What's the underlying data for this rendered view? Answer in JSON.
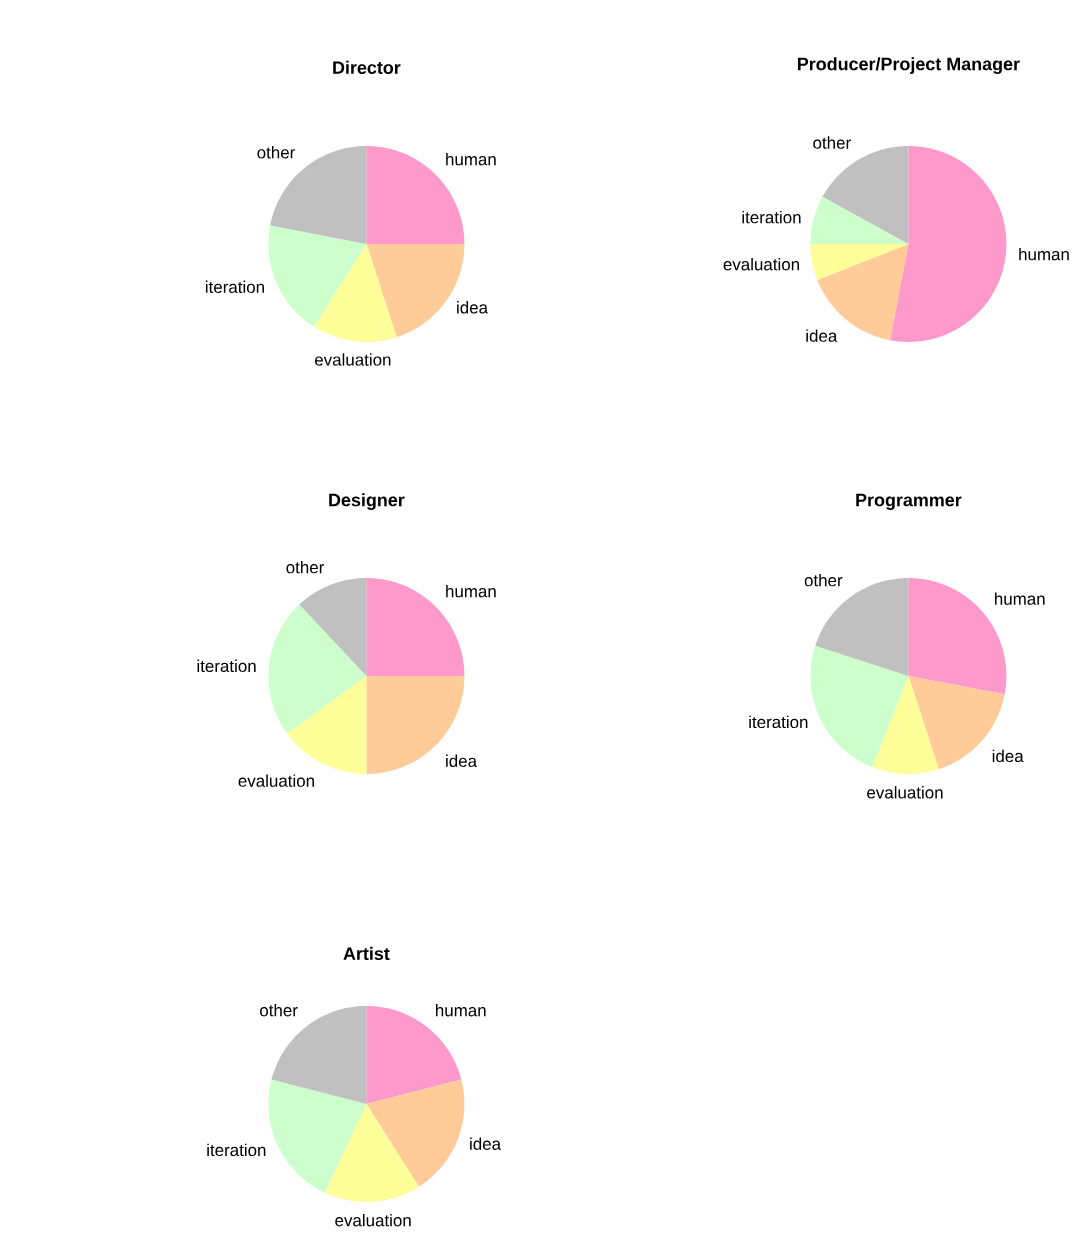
{
  "chart_data": [
    {
      "type": "pie",
      "title": "Director",
      "categories": [
        "human",
        "idea",
        "evaluation",
        "iteration",
        "other"
      ],
      "values": [
        25,
        20,
        14,
        19,
        22
      ],
      "colors": [
        "#ff99cc",
        "#ffcc99",
        "#ffff99",
        "#ccffcc",
        "#c0c0c0"
      ]
    },
    {
      "type": "pie",
      "title": "Producer/Project Manager",
      "categories": [
        "human",
        "idea",
        "evaluation",
        "iteration",
        "other"
      ],
      "values": [
        53,
        16,
        6,
        8,
        17
      ],
      "colors": [
        "#ff99cc",
        "#ffcc99",
        "#ffff99",
        "#ccffcc",
        "#c0c0c0"
      ]
    },
    {
      "type": "pie",
      "title": "Designer",
      "categories": [
        "human",
        "idea",
        "evaluation",
        "iteration",
        "other"
      ],
      "values": [
        25,
        25,
        15,
        23,
        12
      ],
      "colors": [
        "#ff99cc",
        "#ffcc99",
        "#ffff99",
        "#ccffcc",
        "#c0c0c0"
      ]
    },
    {
      "type": "pie",
      "title": "Programmer",
      "categories": [
        "human",
        "idea",
        "evaluation",
        "iteration",
        "other"
      ],
      "values": [
        28,
        17,
        11,
        24,
        20
      ],
      "colors": [
        "#ff99cc",
        "#ffcc99",
        "#ffff99",
        "#ccffcc",
        "#c0c0c0"
      ]
    },
    {
      "type": "pie",
      "title": "Artist",
      "categories": [
        "human",
        "idea",
        "evaluation",
        "iteration",
        "other"
      ],
      "values": [
        21,
        20,
        16,
        22,
        21
      ],
      "colors": [
        "#ff99cc",
        "#ffcc99",
        "#ffff99",
        "#ccffcc",
        "#c0c0c0"
      ]
    }
  ]
}
